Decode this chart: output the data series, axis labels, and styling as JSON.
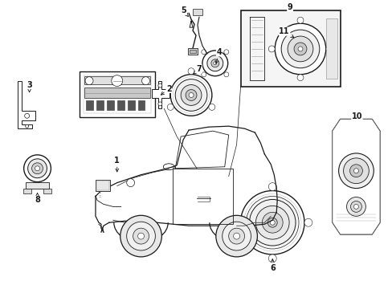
{
  "background_color": "#ffffff",
  "line_color": "#1a1a1a",
  "fig_width": 4.89,
  "fig_height": 3.6,
  "dpi": 100,
  "label_positions": {
    "1": [
      1.42,
      2.08,
      1.42,
      2.2
    ],
    "2": [
      2.08,
      2.62,
      2.08,
      2.62
    ],
    "3": [
      0.32,
      2.72,
      0.38,
      2.68
    ],
    "4": [
      2.62,
      3.1,
      2.62,
      3.1
    ],
    "5": [
      2.3,
      3.3,
      2.3,
      3.3
    ],
    "6": [
      3.38,
      0.3,
      3.38,
      0.42
    ],
    "7": [
      2.8,
      2.88,
      2.86,
      2.82
    ],
    "8": [
      0.5,
      1.82,
      0.5,
      1.9
    ],
    "9": [
      3.72,
      3.28,
      3.72,
      3.28
    ],
    "10": [
      4.42,
      2.38,
      4.42,
      2.38
    ],
    "11": [
      3.55,
      3.05,
      3.62,
      2.98
    ]
  }
}
